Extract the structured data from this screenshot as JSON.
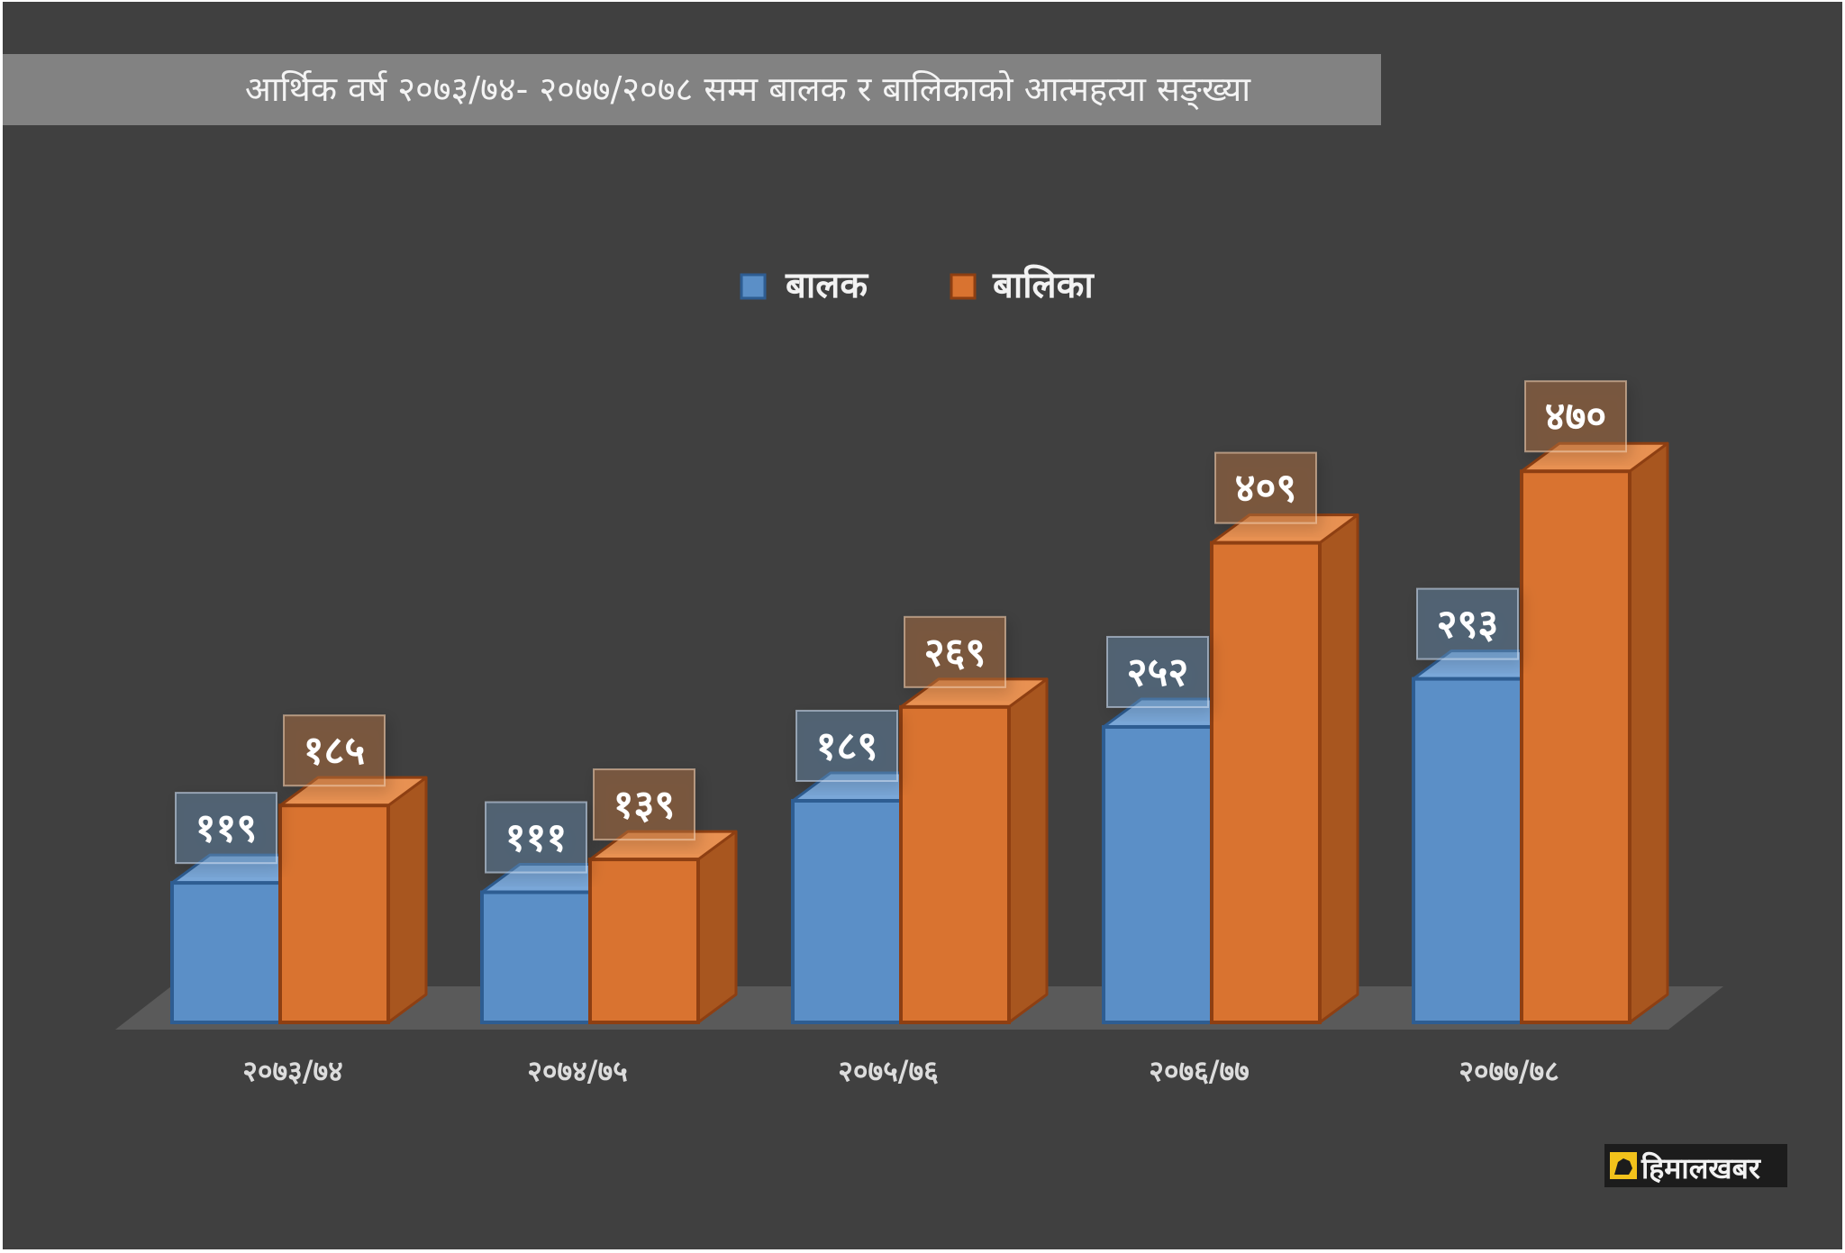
{
  "chart_data": {
    "type": "bar",
    "title": "आर्थिक वर्ष २०७३/७४- २०७७/२०७८ सम्म बालक र बालिकाको आत्महत्या सङ्ख्या",
    "xlabel": "",
    "ylabel": "",
    "categories": [
      "२०७३/७४",
      "२०७४/७५",
      "२०७५/७६",
      "२०७६/७७",
      "२०७७/७८"
    ],
    "series": [
      {
        "name": "बालक",
        "values": [
          119,
          111,
          189,
          252,
          293
        ],
        "labels": [
          "११९",
          "१११",
          "१८९",
          "२५२",
          "२९३"
        ],
        "color": "#5b8fc7"
      },
      {
        "name": "बालिका",
        "values": [
          185,
          139,
          269,
          409,
          470
        ],
        "labels": [
          "१८५",
          "१३९",
          "२६९",
          "४०९",
          "४७०"
        ],
        "color": "#d97330"
      }
    ],
    "ylim": [
      0,
      520
    ],
    "grid": false,
    "legend": "top-center"
  },
  "colors": {
    "background": "#404040",
    "title_band": "#828282",
    "floor": "#5a5a5a",
    "text_light": "#e8e8e8"
  },
  "logo": {
    "text": "हिमालखबर",
    "icon": "yeti-logo-icon"
  }
}
